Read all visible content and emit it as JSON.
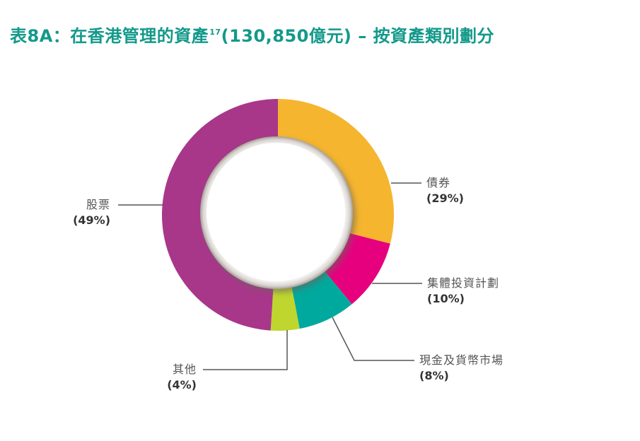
{
  "title": {
    "main": "表8A：在香港管理的資產",
    "superscript": "17",
    "suffix": "(130,850億元) – 按資產類別劃分"
  },
  "chart_data": {
    "type": "pie",
    "variant": "donut",
    "title": "表8A：在香港管理的資產17(130,850億元) – 按資產類別劃分",
    "total": "130,850億元",
    "start_angle": "12 o'clock, clockwise",
    "categories": [
      "債券",
      "集體投資計劃",
      "現金及貨幣市場",
      "其他",
      "股票"
    ],
    "values": [
      29,
      10,
      8,
      4,
      49
    ],
    "colors": [
      "#f5b52e",
      "#e6007e",
      "#00a99d",
      "#bed62e",
      "#a8378a"
    ],
    "labels": [
      {
        "name": "債券",
        "pct": "(29%)"
      },
      {
        "name": "集體投資計劃",
        "pct": "(10%)"
      },
      {
        "name": "現金及貨幣市場",
        "pct": "(8%)"
      },
      {
        "name": "其他",
        "pct": "(4%)"
      },
      {
        "name": "股票",
        "pct": "(49%)"
      }
    ],
    "legend": "callout labels with leader lines"
  }
}
